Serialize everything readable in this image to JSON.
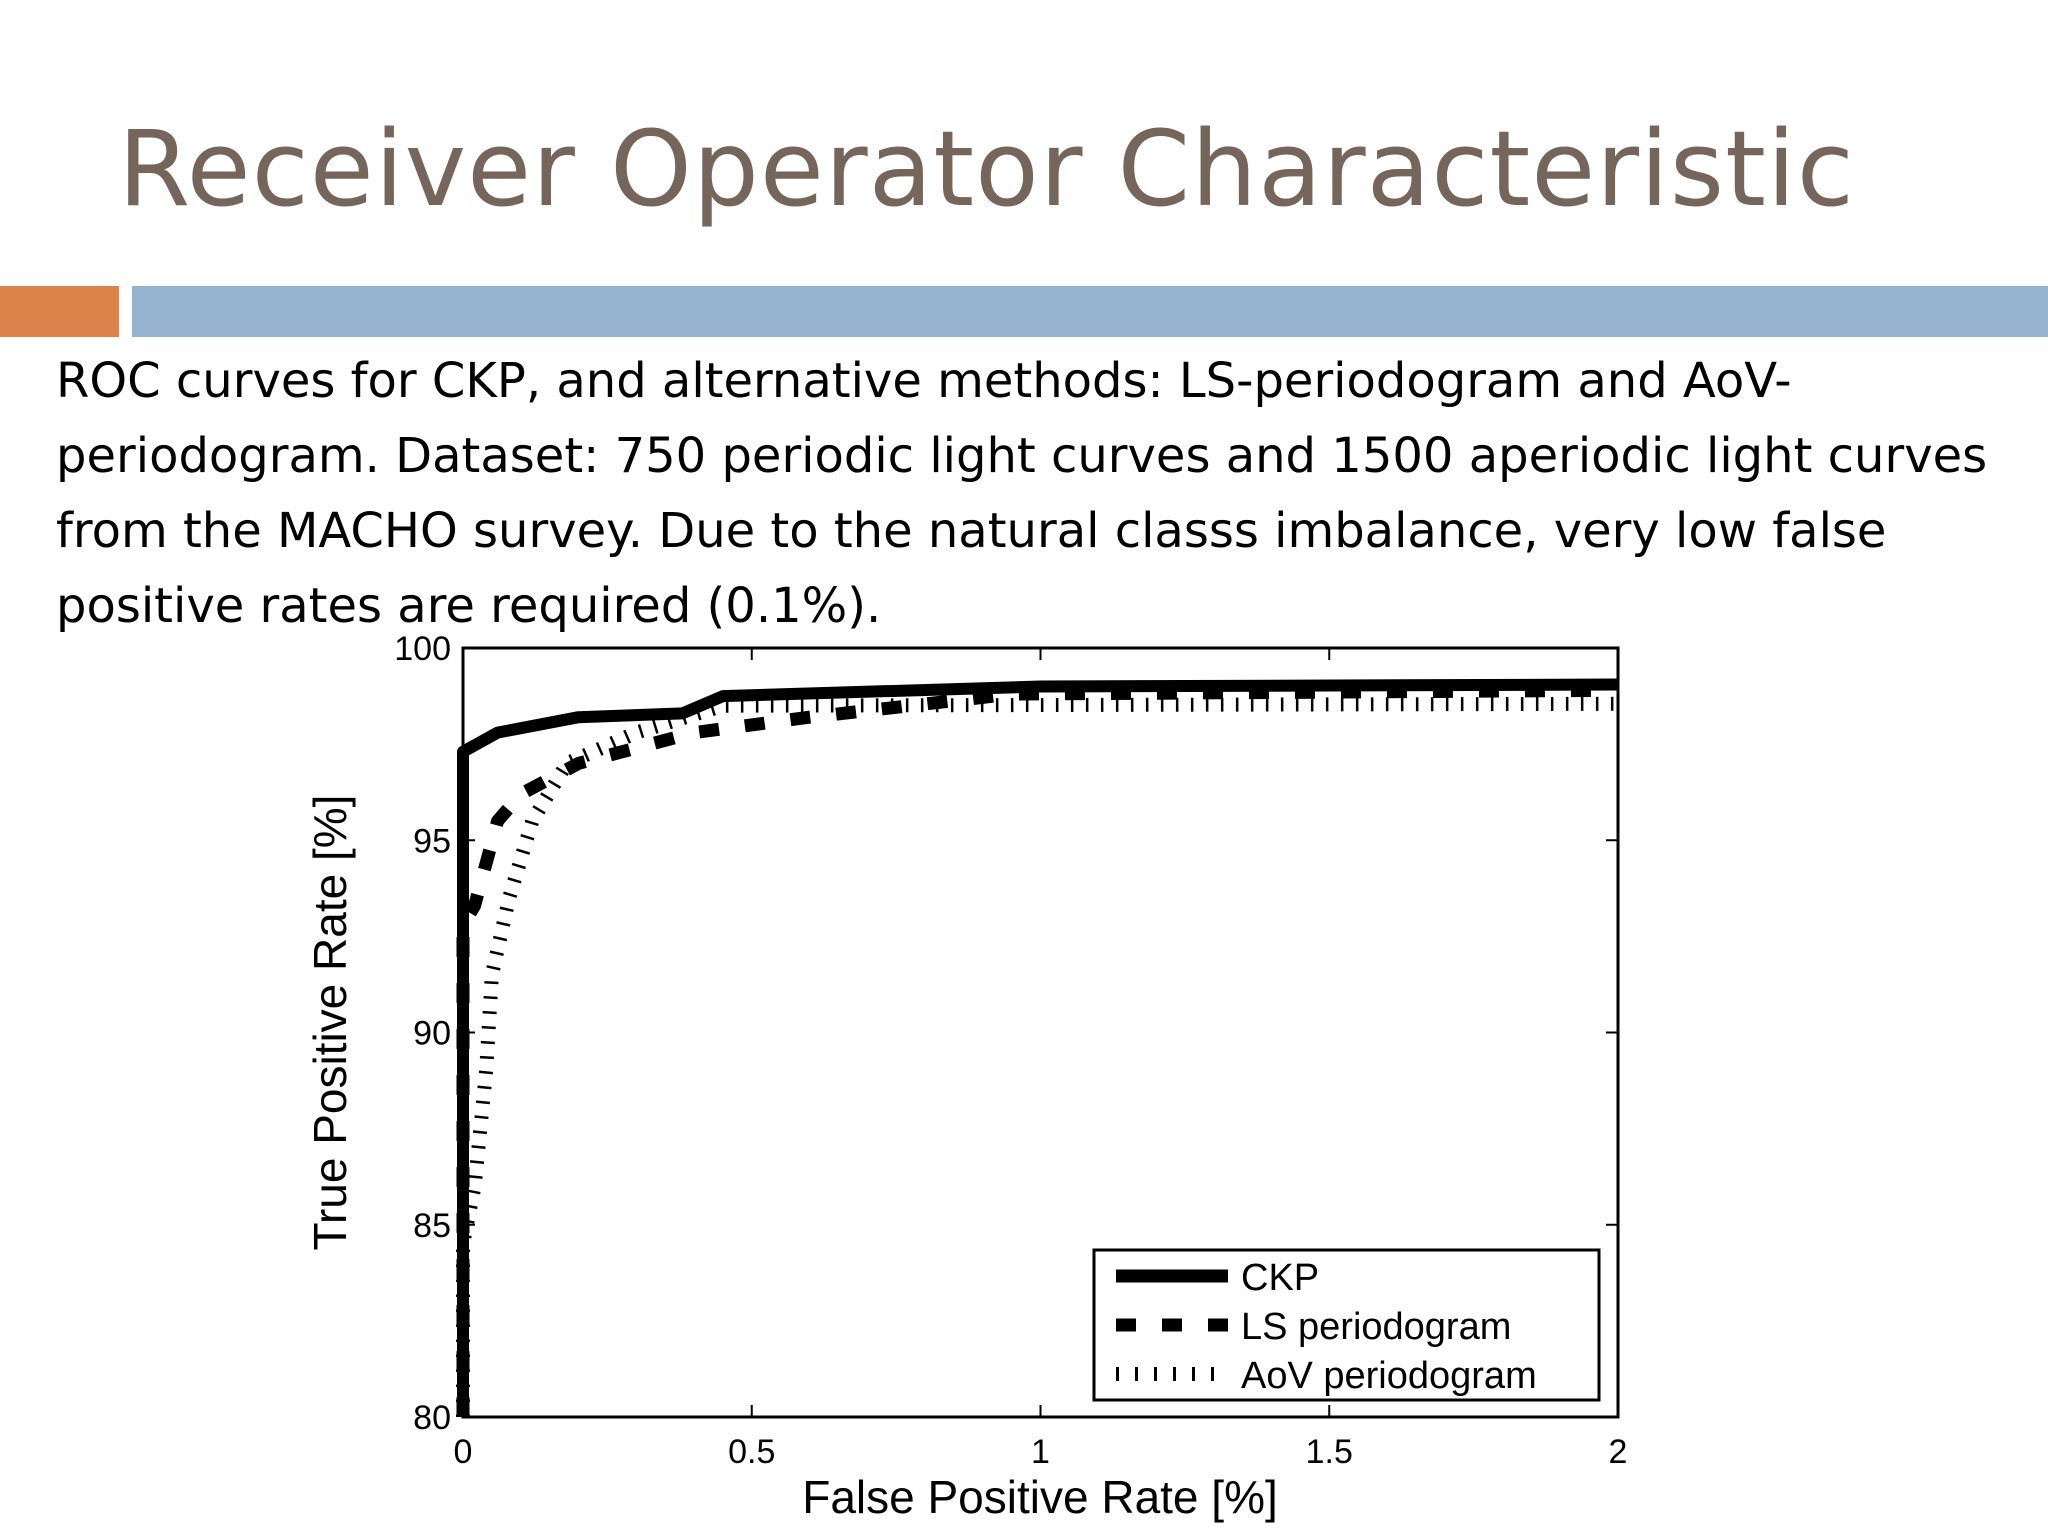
{
  "slide": {
    "title": "Receiver Operator Characteristic",
    "accent_colors": {
      "orange": "#DC824B",
      "blue": "#95B3CF",
      "title": "#76655B"
    },
    "body": "ROC curves for CKP, and alternative methods: LS-periodogram and AoV-periodogram.  Dataset: 750 periodic light curves and 1500 aperiodic light curves from the MACHO survey.  Due to the natural classs imbalance, very low false positive rates are required (0.1%)."
  },
  "chart_data": {
    "type": "line",
    "title": "",
    "xlabel": "False Positive Rate [%]",
    "ylabel": "True Positive Rate [%]",
    "xlim": [
      0,
      2
    ],
    "ylim": [
      80,
      100
    ],
    "xticks": [
      "0",
      "0.5",
      "1",
      "1.5",
      "2"
    ],
    "yticks": [
      "80",
      "85",
      "90",
      "95",
      "100"
    ],
    "grid": false,
    "legend_position": "lower right",
    "series": [
      {
        "name": "CKP",
        "style": "solid",
        "x": [
          0,
          0,
          0.06,
          0.2,
          0.38,
          0.45,
          1.0,
          2.0
        ],
        "y": [
          80,
          97.3,
          97.8,
          98.2,
          98.3,
          98.75,
          99.0,
          99.05
        ]
      },
      {
        "name": "LS periodogram",
        "style": "dashed",
        "x": [
          0,
          0,
          0.02,
          0.04,
          0.06,
          0.1,
          0.2,
          0.4,
          0.6,
          0.95,
          2.0
        ],
        "y": [
          80,
          92.8,
          93.3,
          94.4,
          95.5,
          96.2,
          97.0,
          97.8,
          98.2,
          98.8,
          98.9
        ]
      },
      {
        "name": "AoV periodogram",
        "style": "dotted",
        "x": [
          0,
          0,
          0.02,
          0.04,
          0.05,
          0.08,
          0.12,
          0.18,
          0.3,
          0.45,
          2.0
        ],
        "y": [
          80,
          84.5,
          86.0,
          89.0,
          91.5,
          93.5,
          95.5,
          97.0,
          97.8,
          98.5,
          98.55
        ]
      }
    ]
  }
}
